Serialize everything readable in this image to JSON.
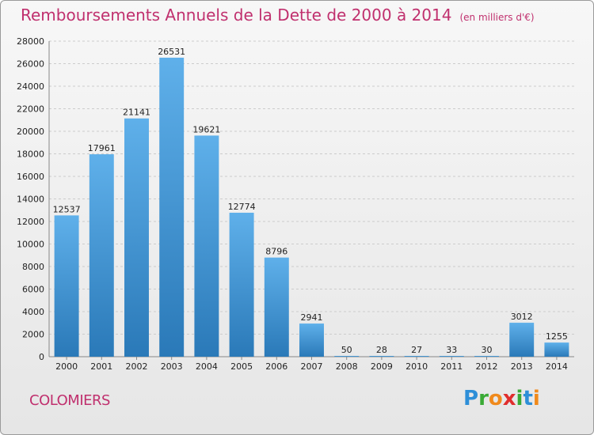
{
  "header": {
    "title": "Remboursements Annuels de la Dette de 2000 à 2014",
    "unit": "(en milliers d'€)"
  },
  "footer": {
    "city": "COLOMIERS",
    "brand_letters": [
      {
        "char": "P",
        "color": "#2e8fd8"
      },
      {
        "char": "r",
        "color": "#3aaa35"
      },
      {
        "char": "o",
        "color": "#f08a1c"
      },
      {
        "char": "x",
        "color": "#e02d2d"
      },
      {
        "char": "i",
        "color": "#3aaa35"
      },
      {
        "char": "t",
        "color": "#2e8fd8"
      },
      {
        "char": "i",
        "color": "#f08a1c"
      }
    ]
  },
  "chart_data": {
    "type": "bar",
    "title": "Remboursements Annuels de la Dette de 2000 à 2014",
    "categories": [
      "2000",
      "2001",
      "2002",
      "2003",
      "2004",
      "2005",
      "2006",
      "2007",
      "2008",
      "2009",
      "2010",
      "2011",
      "2012",
      "2013",
      "2014"
    ],
    "values": [
      12537,
      17961,
      21141,
      26531,
      19621,
      12774,
      8796,
      2941,
      50,
      28,
      27,
      33,
      30,
      3012,
      1255
    ],
    "ylim": [
      0,
      28000
    ],
    "yticks": [
      0,
      2000,
      4000,
      6000,
      8000,
      10000,
      12000,
      14000,
      16000,
      18000,
      20000,
      22000,
      24000,
      26000,
      28000
    ],
    "grid": true,
    "colors": {
      "bar_light": "#5fb0ea",
      "bar_dark": "#2a79b8",
      "grid": "#cccccc",
      "text": "#222222"
    }
  }
}
